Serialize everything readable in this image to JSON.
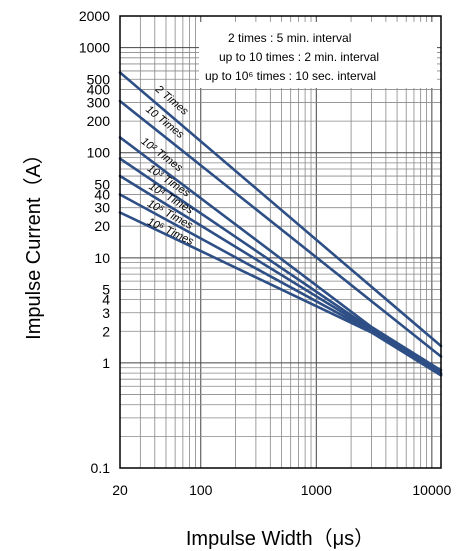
{
  "chart_data": {
    "type": "line",
    "title": "",
    "xlabel": "Impulse Width（μs）",
    "ylabel": "Impulse Current（A）",
    "x_scale": "log",
    "y_scale": "log",
    "xlim": [
      20,
      12000
    ],
    "ylim": [
      0.1,
      2000
    ],
    "grid": true,
    "x_ticks": [
      "20",
      "100",
      "1000",
      "10000"
    ],
    "y_ticks": [
      "0.1",
      "1",
      "2",
      "3",
      "4",
      "5",
      "10",
      "20",
      "30",
      "40",
      "50",
      "100",
      "200",
      "300",
      "400",
      "500",
      "1000",
      "2000"
    ],
    "annotations": [
      "2 times : 5 min. interval",
      "up to 10 times : 2 min. interval",
      "up to 10⁶ times : 10 sec. interval"
    ],
    "series": [
      {
        "label": "2 Times",
        "x": [
          20,
          12000
        ],
        "y": [
          580,
          1.45
        ]
      },
      {
        "label": "10 Times",
        "x": [
          20,
          12000
        ],
        "y": [
          310,
          1.15
        ]
      },
      {
        "label": "10² Times",
        "x": [
          20,
          3000,
          12000
        ],
        "y": [
          140,
          2.2,
          0.85
        ]
      },
      {
        "label": "10³ Times",
        "x": [
          20,
          3000,
          12000
        ],
        "y": [
          88,
          2.1,
          0.8
        ]
      },
      {
        "label": "10⁴ Times",
        "x": [
          20,
          3000,
          12000
        ],
        "y": [
          60,
          2.05,
          0.78
        ]
      },
      {
        "label": "10⁵ Times",
        "x": [
          20,
          3000,
          12000
        ],
        "y": [
          40,
          2.0,
          0.77
        ]
      },
      {
        "label": "10⁶ Times",
        "x": [
          20,
          3000,
          12000
        ],
        "y": [
          27,
          1.95,
          0.76
        ]
      }
    ]
  }
}
